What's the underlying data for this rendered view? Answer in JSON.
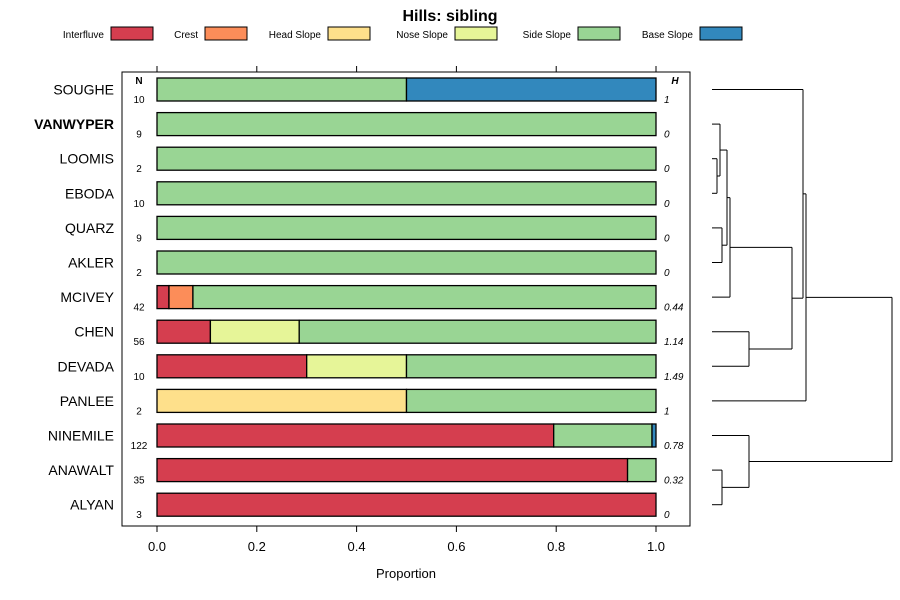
{
  "chart_data": {
    "type": "bar",
    "stacked": true,
    "orientation": "horizontal",
    "title": "Hills: sibling",
    "xlabel": "Proportion",
    "ylabel": "",
    "xlim": [
      0,
      1
    ],
    "xticks": [
      "0.0",
      "0.2",
      "0.4",
      "0.6",
      "0.8",
      "1.0"
    ],
    "xtick_values": [
      0,
      0.2,
      0.4,
      0.6,
      0.8,
      1.0
    ],
    "n_header": "N",
    "h_header": "H",
    "highlight": "VANWYPER",
    "legend": [
      {
        "name": "Interfluve",
        "color": "#d53e4f"
      },
      {
        "name": "Crest",
        "color": "#fc8d59"
      },
      {
        "name": "Head Slope",
        "color": "#fee08b"
      },
      {
        "name": "Nose Slope",
        "color": "#e6f598"
      },
      {
        "name": "Side Slope",
        "color": "#99d594"
      },
      {
        "name": "Base Slope",
        "color": "#3288bd"
      }
    ],
    "categories": [
      "SOUGHE",
      "VANWYPER",
      "LOOMIS",
      "EBODA",
      "QUARZ",
      "AKLER",
      "MCIVEY",
      "CHEN",
      "DEVADA",
      "PANLEE",
      "NINEMILE",
      "ANAWALT",
      "ALYAN"
    ],
    "n": [
      "10",
      "9",
      "2",
      "10",
      "9",
      "2",
      "42",
      "56",
      "10",
      "2",
      "122",
      "35",
      "3"
    ],
    "h": [
      "1",
      "0",
      "0",
      "0",
      "0",
      "0",
      "0.44",
      "1.14",
      "1.49",
      "1",
      "0.78",
      "0.32",
      "0"
    ],
    "series": [
      {
        "name": "Interfluve",
        "values": [
          0,
          0,
          0,
          0,
          0,
          0,
          0.024,
          0.107,
          0.3,
          0,
          0.795,
          0.943,
          1.0
        ]
      },
      {
        "name": "Crest",
        "values": [
          0,
          0,
          0,
          0,
          0,
          0,
          0.048,
          0,
          0,
          0,
          0,
          0,
          0
        ]
      },
      {
        "name": "Head Slope",
        "values": [
          0,
          0,
          0,
          0,
          0,
          0,
          0,
          0,
          0,
          0.5,
          0,
          0,
          0
        ]
      },
      {
        "name": "Nose Slope",
        "values": [
          0,
          0,
          0,
          0,
          0,
          0,
          0,
          0.178,
          0.2,
          0,
          0,
          0,
          0
        ]
      },
      {
        "name": "Side Slope",
        "values": [
          0.5,
          1.0,
          1.0,
          1.0,
          1.0,
          1.0,
          0.928,
          0.715,
          0.5,
          0.5,
          0.197,
          0.057,
          0
        ]
      },
      {
        "name": "Base Slope",
        "values": [
          0.5,
          0,
          0,
          0,
          0,
          0,
          0,
          0,
          0,
          0,
          0.008,
          0,
          0
        ]
      }
    ],
    "dendrogram_clusters": "(SOUGHE,(((VANWYPER,(LOOMIS,EBODA)),(QUARZ,AKLER),MCIVEY),(CHEN,DEVADA)),PANLEE),(NINEMILE,(ANAWALT,ALYAN))"
  }
}
